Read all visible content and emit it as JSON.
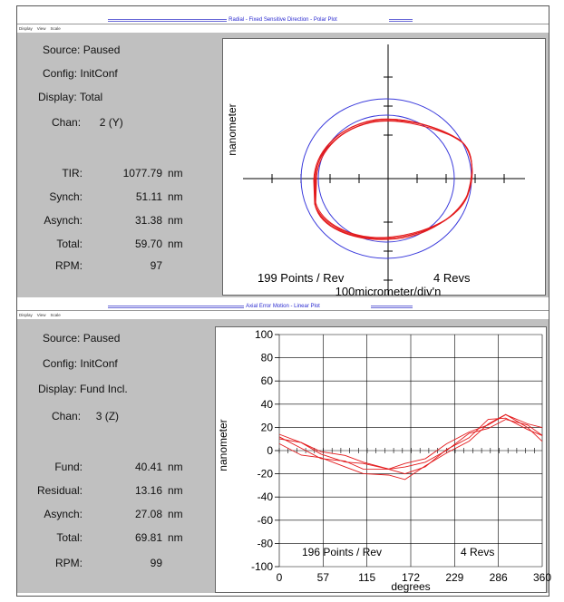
{
  "top": {
    "title": "Radial - Fixed Sensitive Direction - Polar Plot",
    "menu": [
      "Display",
      "View",
      "Scale"
    ],
    "source_label": "Source:",
    "source": "Paused",
    "config_label": "Config:",
    "config": "InitConf",
    "display_label": "Display:",
    "display": "Total",
    "chan_label": "Chan:",
    "chan": "2 (Y)",
    "metrics": [
      {
        "label": "TIR:",
        "value": "1077.79",
        "unit": "nm"
      },
      {
        "label": "Synch:",
        "value": "51.11",
        "unit": "nm"
      },
      {
        "label": "Asynch:",
        "value": "31.38",
        "unit": "nm"
      },
      {
        "label": "Total:",
        "value": "59.70",
        "unit": "nm"
      }
    ],
    "rpm_label": "RPM:",
    "rpm": "97",
    "plot": {
      "ylabel": "nanometer",
      "xlabel": "100micrometer/div'n",
      "points": "199 Points / Rev",
      "revs": "4 Revs"
    }
  },
  "bottom": {
    "title": "Axial Error Motion - Linear Plot",
    "menu": [
      "Display",
      "View",
      "Scale"
    ],
    "source_label": "Source:",
    "source": "Paused",
    "config_label": "Config:",
    "config": "InitConf",
    "display_label": "Display:",
    "display": "Fund Incl.",
    "chan_label": "Chan:",
    "chan": "3 (Z)",
    "metrics": [
      {
        "label": "Fund:",
        "value": "40.41",
        "unit": "nm"
      },
      {
        "label": "Residual:",
        "value": "13.16",
        "unit": "nm"
      },
      {
        "label": "Asynch:",
        "value": "27.08",
        "unit": "nm"
      },
      {
        "label": "Total:",
        "value": "69.81",
        "unit": "nm"
      }
    ],
    "rpm_label": "RPM:",
    "rpm": "99",
    "plot": {
      "ylabel": "nanometer",
      "xlabel": "degrees",
      "points": "196 Points / Rev",
      "revs": "4 Revs"
    }
  },
  "colors": {
    "trace": "#e31a1c",
    "ref_circle": "#3b3bdc",
    "panel": "#c0c0c0"
  },
  "chart_data": {
    "type": "line",
    "xlabel": "degrees",
    "ylabel": "nanometer",
    "xticks": [
      "0",
      "57",
      "115",
      "172",
      "229",
      "286",
      "360"
    ],
    "yticks": [
      "100",
      "80",
      "60",
      "40",
      "20",
      "0",
      "-20",
      "-40",
      "-60",
      "-80",
      "-100"
    ],
    "xlim": [
      0,
      360
    ],
    "ylim": [
      -100,
      100
    ],
    "grid": true,
    "series": [
      {
        "x": [
          0,
          30,
          57,
          90,
          115,
          150,
          172,
          200,
          229,
          260,
          286,
          310,
          340,
          360
        ],
        "y": [
          10,
          2,
          -5,
          -10,
          -15,
          -18,
          -20,
          -12,
          0,
          12,
          25,
          28,
          20,
          12
        ]
      },
      {
        "x": [
          0,
          30,
          57,
          90,
          115,
          150,
          172,
          200,
          229,
          260,
          286,
          310,
          340,
          360
        ],
        "y": [
          15,
          5,
          -3,
          -8,
          -12,
          -15,
          -16,
          -10,
          2,
          14,
          20,
          25,
          22,
          15
        ]
      },
      {
        "x": [
          0,
          30,
          57,
          90,
          115,
          150,
          172,
          200,
          229,
          260,
          286,
          310,
          340,
          360
        ],
        "y": [
          5,
          -3,
          -8,
          -14,
          -18,
          -22,
          -24,
          -15,
          -2,
          10,
          22,
          32,
          18,
          8
        ]
      },
      {
        "x": [
          0,
          30,
          57,
          90,
          115,
          150,
          172,
          200,
          229,
          260,
          286,
          310,
          340,
          360
        ],
        "y": [
          12,
          6,
          0,
          -6,
          -10,
          -14,
          -12,
          -6,
          4,
          16,
          24,
          30,
          24,
          18
        ]
      }
    ]
  }
}
